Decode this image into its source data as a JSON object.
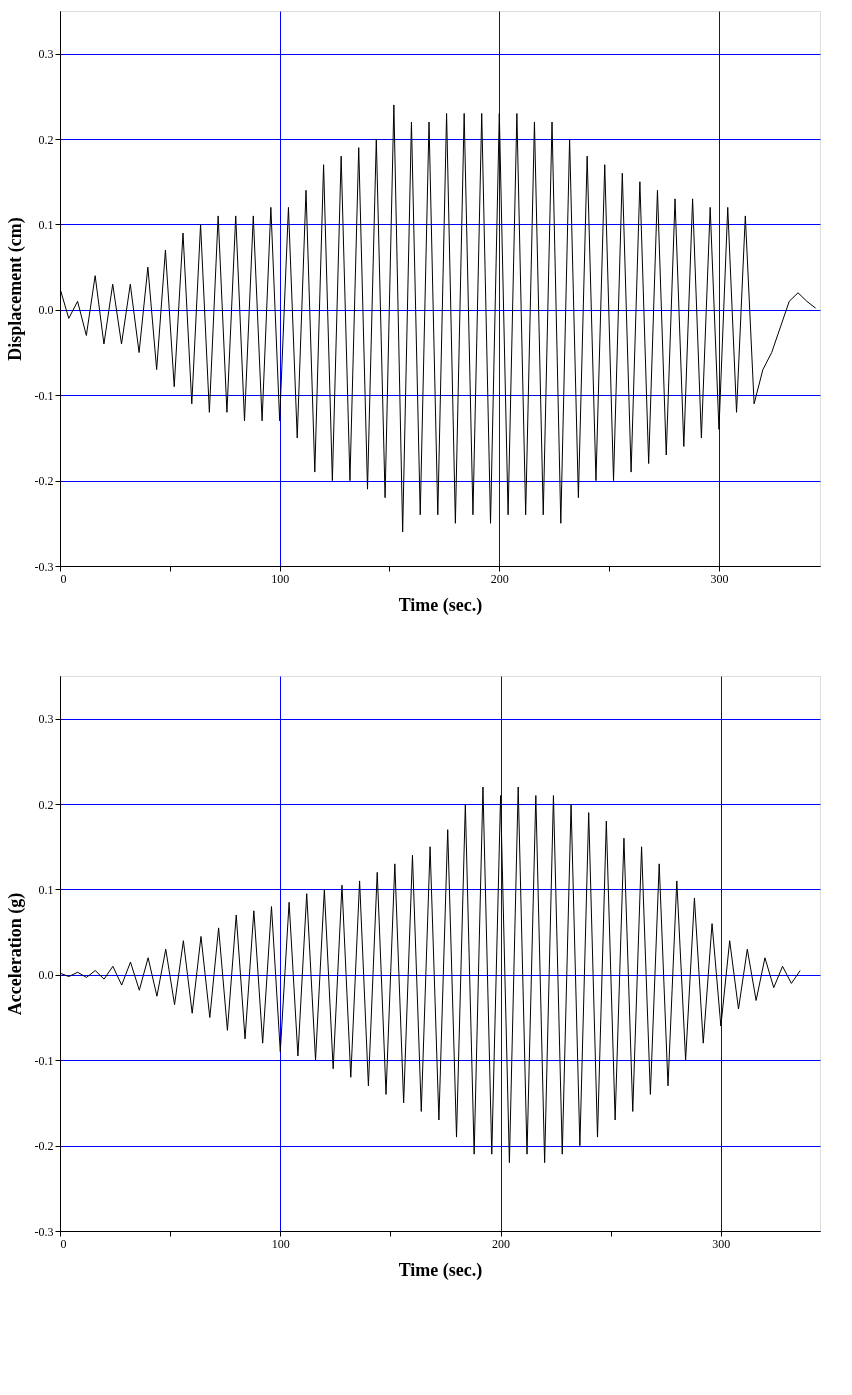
{
  "chart_data": [
    {
      "type": "line",
      "xlabel": "Time (sec.)",
      "ylabel": "Displacement (cm)",
      "xlim": [
        0,
        346
      ],
      "ylim": [
        -0.3,
        0.35
      ],
      "xticks": [
        0,
        {
          "value": 50,
          "label": null
        },
        100,
        {
          "value": 150,
          "label": null
        },
        200,
        {
          "value": 250,
          "label": null
        },
        300
      ],
      "yticks": [
        -0.3,
        -0.2,
        -0.1,
        {
          "value": 0,
          "label": "0.0"
        },
        0.1,
        0.2,
        0.3
      ],
      "grid": true,
      "marker": "none",
      "line_style": "solid",
      "x": [
        0,
        4,
        8,
        12,
        16,
        20,
        24,
        28,
        32,
        36,
        40,
        44,
        48,
        52,
        56,
        60,
        64,
        68,
        72,
        76,
        80,
        84,
        88,
        92,
        96,
        100,
        104,
        108,
        112,
        116,
        120,
        124,
        128,
        132,
        136,
        140,
        144,
        148,
        152,
        156,
        160,
        164,
        168,
        172,
        176,
        180,
        184,
        188,
        192,
        196,
        200,
        204,
        208,
        212,
        216,
        220,
        224,
        228,
        232,
        236,
        240,
        244,
        248,
        252,
        256,
        260,
        264,
        268,
        272,
        276,
        280,
        284,
        288,
        292,
        296,
        300,
        304,
        308,
        312,
        316,
        320,
        324,
        328,
        332,
        336,
        340,
        344
      ],
      "series": [
        {
          "color": "#000000",
          "values": [
            0.025,
            -0.01,
            0.01,
            -0.03,
            0.04,
            -0.04,
            0.03,
            -0.04,
            0.03,
            -0.05,
            0.05,
            -0.07,
            0.07,
            -0.09,
            0.09,
            -0.11,
            0.1,
            -0.12,
            0.11,
            -0.12,
            0.11,
            -0.13,
            0.11,
            -0.13,
            0.12,
            -0.13,
            0.12,
            -0.15,
            0.14,
            -0.19,
            0.17,
            -0.2,
            0.18,
            -0.2,
            0.19,
            -0.21,
            0.2,
            -0.22,
            0.24,
            -0.26,
            0.22,
            -0.24,
            0.22,
            -0.24,
            0.23,
            -0.25,
            0.23,
            -0.24,
            0.23,
            -0.25,
            0.23,
            -0.24,
            0.23,
            -0.24,
            0.22,
            -0.24,
            0.22,
            -0.25,
            0.2,
            -0.22,
            0.18,
            -0.2,
            0.17,
            -0.2,
            0.16,
            -0.19,
            0.15,
            -0.18,
            0.14,
            -0.17,
            0.13,
            -0.16,
            0.13,
            -0.15,
            0.12,
            -0.14,
            0.12,
            -0.12,
            0.11,
            -0.11,
            -0.07,
            -0.05,
            -0.02,
            0.01,
            0.02,
            0.01,
            0.002
          ]
        }
      ]
    },
    {
      "type": "line",
      "xlabel": "Time (sec.)",
      "ylabel": "Acceleration (g)",
      "xlim": [
        0,
        345
      ],
      "ylim": [
        -0.3,
        0.35
      ],
      "xticks": [
        0,
        {
          "value": 50,
          "label": null
        },
        100,
        {
          "value": 150,
          "label": null
        },
        200,
        {
          "value": 250,
          "label": null
        },
        300
      ],
      "yticks": [
        -0.3,
        -0.2,
        -0.1,
        {
          "value": 0,
          "label": "0.0"
        },
        0.1,
        0.2,
        0.3
      ],
      "grid": true,
      "marker": "none",
      "line_style": "solid",
      "x": [
        0,
        4,
        8,
        12,
        16,
        20,
        24,
        28,
        32,
        36,
        40,
        44,
        48,
        52,
        56,
        60,
        64,
        68,
        72,
        76,
        80,
        84,
        88,
        92,
        96,
        100,
        104,
        108,
        112,
        116,
        120,
        124,
        128,
        132,
        136,
        140,
        144,
        148,
        152,
        156,
        160,
        164,
        168,
        172,
        176,
        180,
        184,
        188,
        192,
        196,
        200,
        204,
        208,
        212,
        216,
        220,
        224,
        228,
        232,
        236,
        240,
        244,
        248,
        252,
        256,
        260,
        264,
        268,
        272,
        276,
        280,
        284,
        288,
        292,
        296,
        300,
        304,
        308,
        312,
        316,
        320,
        324,
        328,
        332,
        336
      ],
      "series": [
        {
          "color": "#000000",
          "values": [
            0.002,
            -0.002,
            0.003,
            -0.003,
            0.005,
            -0.005,
            0.01,
            -0.012,
            0.015,
            -0.018,
            0.02,
            -0.025,
            0.03,
            -0.035,
            0.04,
            -0.045,
            0.045,
            -0.05,
            0.055,
            -0.065,
            0.07,
            -0.075,
            0.075,
            -0.08,
            0.08,
            -0.09,
            0.085,
            -0.095,
            0.095,
            -0.1,
            0.1,
            -0.11,
            0.105,
            -0.12,
            0.11,
            -0.13,
            0.12,
            -0.14,
            0.13,
            -0.15,
            0.14,
            -0.16,
            0.15,
            -0.17,
            0.17,
            -0.19,
            0.2,
            -0.21,
            0.22,
            -0.21,
            0.21,
            -0.22,
            0.22,
            -0.21,
            0.21,
            -0.22,
            0.21,
            -0.21,
            0.2,
            -0.2,
            0.19,
            -0.19,
            0.18,
            -0.17,
            0.16,
            -0.16,
            0.15,
            -0.14,
            0.13,
            -0.13,
            0.11,
            -0.1,
            0.09,
            -0.08,
            0.06,
            -0.06,
            0.04,
            -0.04,
            0.03,
            -0.03,
            0.02,
            -0.015,
            0.01,
            -0.01,
            0.005
          ]
        }
      ]
    }
  ]
}
